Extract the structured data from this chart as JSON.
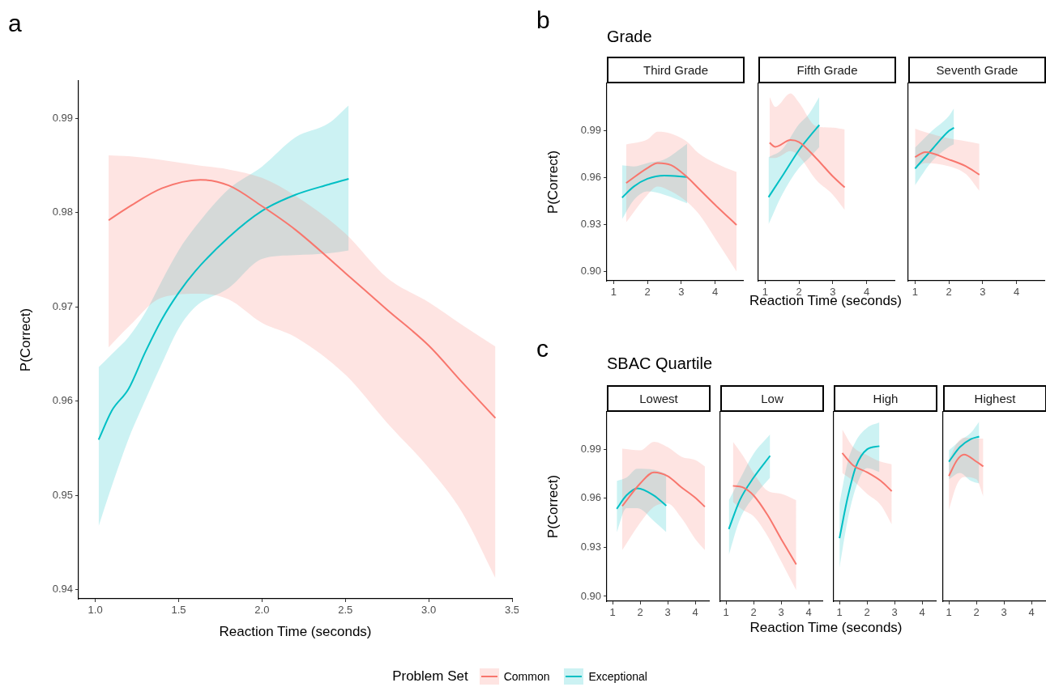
{
  "chart_data": [
    {
      "type": "line",
      "annotations": [
        "a"
      ],
      "xlabel": "Reaction Time (seconds)",
      "ylabel": "P(Correct)",
      "legend": "bottom",
      "legend_title": "Problem Set",
      "xlim": [
        0.9,
        3.5
      ],
      "ylim": [
        0.939,
        0.994
      ],
      "xticks": [
        {
          "value": 1,
          "label": "1.0"
        },
        1.5,
        {
          "value": 2,
          "label": "2.0"
        },
        2.5,
        {
          "value": 3,
          "label": "3.0"
        },
        3.5
      ],
      "yticks": [
        0.94,
        0.95,
        0.96,
        0.97,
        0.98,
        0.99
      ],
      "series": [
        {
          "name": "Common",
          "color": "#f8766d",
          "x": [
            1.08,
            1.2,
            1.4,
            1.63,
            1.8,
            2.0,
            2.2,
            2.5,
            2.75,
            3.0,
            3.2,
            3.4
          ],
          "values": [
            0.9792,
            0.9806,
            0.9826,
            0.9835,
            0.9829,
            0.9807,
            0.9782,
            0.9736,
            0.9697,
            0.9659,
            0.962,
            0.9582
          ],
          "upper": [
            0.9861,
            0.986,
            0.9856,
            0.985,
            0.9846,
            0.9837,
            0.9818,
            0.9778,
            0.9731,
            0.9705,
            0.9681,
            0.9658
          ],
          "lower": [
            0.9657,
            0.9679,
            0.971,
            0.9714,
            0.9708,
            0.9683,
            0.9668,
            0.9628,
            0.9577,
            0.9529,
            0.9482,
            0.9412
          ]
        },
        {
          "name": "Exceptional",
          "color": "#00bfc4",
          "x": [
            1.02,
            1.1,
            1.2,
            1.3,
            1.4,
            1.5,
            1.6,
            1.8,
            2.0,
            2.2,
            2.4,
            2.52
          ],
          "values": [
            0.9559,
            0.959,
            0.9613,
            0.9652,
            0.9687,
            0.9715,
            0.9738,
            0.9774,
            0.9802,
            0.9819,
            0.983,
            0.9836
          ],
          "upper": [
            0.9636,
            0.965,
            0.9668,
            0.9694,
            0.9728,
            0.976,
            0.9785,
            0.9825,
            0.9849,
            0.988,
            0.9895,
            0.9914
          ],
          "lower": [
            0.9467,
            0.951,
            0.956,
            0.9601,
            0.964,
            0.9677,
            0.97,
            0.972,
            0.9751,
            0.9755,
            0.9757,
            0.976
          ]
        }
      ]
    },
    {
      "type": "line",
      "title": "Third Grade",
      "annotations": [
        "b",
        "Grade"
      ],
      "ylabel": "P(Correct)",
      "xlim": [
        0.8,
        4.82
      ],
      "ylim": [
        0.894,
        1.02
      ],
      "xticks": [
        1,
        2,
        3,
        4
      ],
      "yticks": [
        {
          "value": 0.9,
          "label": "0.90"
        },
        0.93,
        0.96,
        0.99
      ],
      "series": [
        {
          "color": "#f8766d",
          "x": [
            1.37,
            2.0,
            2.3,
            2.7,
            3.15,
            3.5,
            4.0,
            4.63
          ],
          "values": [
            0.9564,
            0.966,
            0.9692,
            0.9678,
            0.9606,
            0.9531,
            0.9424,
            0.9296
          ],
          "upper": [
            0.981,
            0.9842,
            0.9891,
            0.9879,
            0.9831,
            0.9756,
            0.9692,
            0.9634
          ],
          "lower": [
            0.9313,
            0.9489,
            0.9542,
            0.951,
            0.9446,
            0.9371,
            0.921,
            0.9
          ]
        },
        {
          "color": "#00bfc4",
          "x": [
            1.25,
            1.6,
            2.0,
            2.5,
            3.17
          ],
          "values": [
            0.9471,
            0.9542,
            0.9591,
            0.9611,
            0.9602
          ],
          "upper": [
            0.9677,
            0.967,
            0.9692,
            0.9714,
            0.9814
          ],
          "lower": [
            0.9334,
            0.9456,
            0.951,
            0.9489,
            0.9435
          ]
        }
      ]
    },
    {
      "type": "line",
      "title": "Fifth Grade",
      "xlabel": "Reaction Time (seconds)",
      "tick_labels": "x",
      "xlim": [
        0.8,
        4.82
      ],
      "ylim": [
        0.894,
        1.02
      ],
      "xticks": [
        1,
        2,
        3,
        4
      ],
      "series": [
        {
          "color": "#f8766d",
          "x": [
            1.13,
            1.3,
            1.75,
            2.0,
            2.5,
            3.0,
            3.35
          ],
          "values": [
            0.9821,
            0.9795,
            0.9838,
            0.9825,
            0.9724,
            0.9606,
            0.9536
          ],
          "upper": [
            1.0114,
            1.005,
            1.0136,
            1.0078,
            0.9928,
            0.9917,
            0.9906
          ],
          "lower": [
            0.9724,
            0.9724,
            0.9767,
            0.9735,
            0.9585,
            0.9489,
            0.9392
          ]
        },
        {
          "color": "#00bfc4",
          "x": [
            1.1,
            1.5,
            2.0,
            2.3,
            2.6
          ],
          "values": [
            0.9474,
            0.9606,
            0.9774,
            0.9857,
            0.9934
          ],
          "upper": [
            0.9729,
            0.9778,
            0.9939,
            1.0007,
            1.0114
          ],
          "lower": [
            0.93,
            0.9489,
            0.966,
            0.9724,
            0.9793
          ]
        }
      ]
    },
    {
      "type": "line",
      "title": "Seventh Grade",
      "tick_labels": "x",
      "xlim": [
        0.8,
        4.82
      ],
      "ylim": [
        0.894,
        1.02
      ],
      "xticks": [
        1,
        2,
        3,
        4
      ],
      "series": [
        {
          "color": "#f8766d",
          "x": [
            1.0,
            1.3,
            2.0,
            2.5,
            2.9
          ],
          "values": [
            0.9729,
            0.9761,
            0.9714,
            0.9671,
            0.9617
          ],
          "upper": [
            0.9911,
            0.9889,
            0.9849,
            0.9831,
            0.9814
          ],
          "lower": [
            0.966,
            0.9692,
            0.9671,
            0.9621,
            0.9514
          ]
        },
        {
          "color": "#00bfc4",
          "x": [
            1.0,
            1.5,
            2.0,
            2.15
          ],
          "values": [
            0.9656,
            0.9778,
            0.9896,
            0.9917
          ],
          "upper": [
            0.9789,
            0.9896,
            0.9992,
            1.0041
          ],
          "lower": [
            0.9549,
            0.9703,
            0.9794,
            0.9811
          ]
        }
      ]
    },
    {
      "type": "line",
      "title": "Lowest",
      "annotations": [
        "c",
        "SBAC Quartile"
      ],
      "ylabel": "P(Correct)",
      "xlim": [
        0.79,
        4.5
      ],
      "ylim": [
        0.897,
        1.013
      ],
      "xticks": [
        1,
        2,
        3,
        4
      ],
      "yticks": [
        {
          "value": 0.9,
          "label": "0.90"
        },
        0.93,
        0.96,
        0.99
      ],
      "series": [
        {
          "color": "#f8766d",
          "x": [
            1.35,
            2.0,
            2.5,
            3.0,
            3.5,
            4.0,
            4.35
          ],
          "values": [
            0.9553,
            0.9691,
            0.976,
            0.9737,
            0.9668,
            0.9605,
            0.9549
          ],
          "upper": [
            0.9904,
            0.9894,
            0.9947,
            0.9914,
            0.9855,
            0.9835,
            0.9796
          ],
          "lower": [
            0.9283,
            0.9451,
            0.9549,
            0.9569,
            0.948,
            0.9352,
            0.9283
          ]
        },
        {
          "color": "#00bfc4",
          "x": [
            1.15,
            1.5,
            1.9,
            2.5,
            2.95
          ],
          "values": [
            0.9536,
            0.9618,
            0.9662,
            0.9618,
            0.9555
          ],
          "upper": [
            0.9707,
            0.9727,
            0.9782,
            0.9776,
            0.975
          ],
          "lower": [
            0.9392,
            0.954,
            0.954,
            0.9461,
            0.9392
          ]
        }
      ]
    },
    {
      "type": "line",
      "title": "Low",
      "xlabel": "Reaction Time (seconds)",
      "tick_labels": "x",
      "xlim": [
        0.79,
        4.5
      ],
      "ylim": [
        0.897,
        1.013
      ],
      "xticks": [
        1,
        2,
        3,
        4
      ],
      "series": [
        {
          "color": "#f8766d",
          "x": [
            1.25,
            1.6,
            2.0,
            2.5,
            3.0,
            3.55
          ],
          "values": [
            0.9677,
            0.9668,
            0.9618,
            0.95,
            0.9352,
            0.9195
          ],
          "upper": [
            0.9947,
            0.9865,
            0.9756,
            0.9648,
            0.9628,
            0.9589
          ],
          "lower": [
            0.9579,
            0.953,
            0.949,
            0.9372,
            0.9215,
            0.9037
          ]
        },
        {
          "color": "#00bfc4",
          "x": [
            1.1,
            1.5,
            2.0,
            2.6
          ],
          "values": [
            0.9412,
            0.9589,
            0.9727,
            0.9861
          ],
          "upper": [
            0.9589,
            0.9717,
            0.9874,
            0.9993
          ],
          "lower": [
            0.9254,
            0.9471,
            0.9608,
            0.9727
          ]
        }
      ]
    },
    {
      "type": "line",
      "title": "High",
      "tick_labels": "x",
      "xlim": [
        0.79,
        4.5
      ],
      "ylim": [
        0.897,
        1.013
      ],
      "xticks": [
        1,
        2,
        3,
        4
      ],
      "series": [
        {
          "color": "#f8766d",
          "x": [
            1.1,
            1.5,
            2.0,
            2.5,
            2.9
          ],
          "values": [
            0.9878,
            0.9802,
            0.976,
            0.9707,
            0.9644
          ],
          "upper": [
            1.0022,
            0.9914,
            0.9865,
            0.9825,
            0.9809
          ],
          "lower": [
            0.9756,
            0.9707,
            0.9628,
            0.9559,
            0.9441
          ]
        },
        {
          "color": "#00bfc4",
          "x": [
            1.0,
            1.3,
            1.6,
            2.0,
            2.45
          ],
          "values": [
            0.9356,
            0.9608,
            0.9796,
            0.99,
            0.992
          ],
          "upper": [
            0.9569,
            0.9825,
            0.9953,
            1.0032,
            1.0065
          ],
          "lower": [
            0.9175,
            0.9471,
            0.9668,
            0.9786,
            0.9762
          ]
        }
      ]
    },
    {
      "type": "line",
      "title": "Highest",
      "tick_labels": "x",
      "xlim": [
        0.79,
        4.5
      ],
      "ylim": [
        0.897,
        1.013
      ],
      "xticks": [
        1,
        2,
        3,
        4
      ],
      "series": [
        {
          "color": "#f8766d",
          "x": [
            1.0,
            1.3,
            1.55,
            2.0,
            2.25
          ],
          "values": [
            0.9737,
            0.9835,
            0.9868,
            0.9825,
            0.9796
          ],
          "upper": [
            0.9835,
            0.9939,
            0.9973,
            0.9967,
            0.9967
          ],
          "lower": [
            0.953,
            0.9687,
            0.9731,
            0.9717,
            0.9612
          ]
        },
        {
          "color": "#00bfc4",
          "x": [
            1.0,
            1.4,
            1.8,
            2.1
          ],
          "values": [
            0.9825,
            0.9914,
            0.9963,
            0.9979
          ],
          "upper": [
            0.9894,
            0.9953,
            1.0002,
            1.0071
          ],
          "lower": [
            0.9717,
            0.9756,
            0.9707,
            0.9691
          ]
        }
      ]
    }
  ]
}
